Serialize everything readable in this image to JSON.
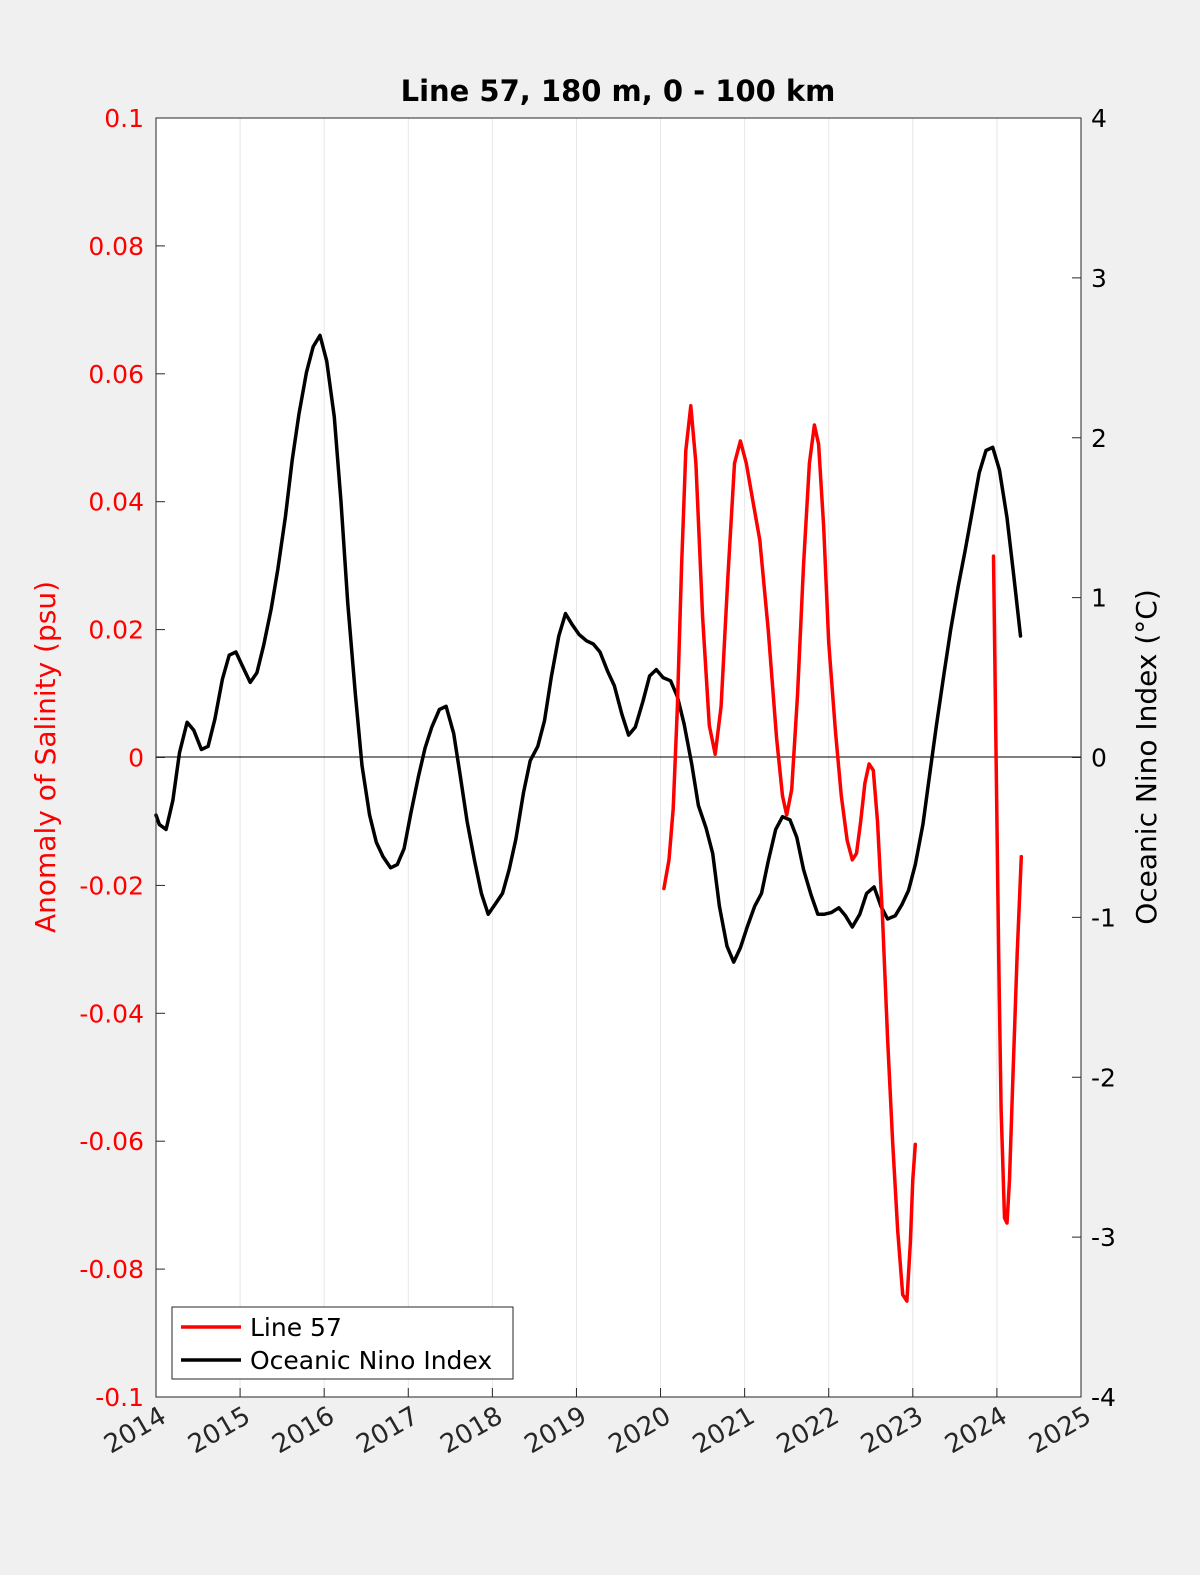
{
  "chart_data": {
    "type": "line",
    "title": "Line 57, 180 m, 0 - 100 km",
    "xlim": [
      2014,
      2025
    ],
    "x_ticks": [
      "2014",
      "2015",
      "2016",
      "2017",
      "2018",
      "2019",
      "2020",
      "2021",
      "2022",
      "2023",
      "2024",
      "2025"
    ],
    "y_left": {
      "label": "Anomaly of Salinity (psu)",
      "lim": [
        -0.1,
        0.1
      ],
      "ticks": [
        "0.1",
        "0.08",
        "0.06",
        "0.04",
        "0.02",
        "0",
        "-0.02",
        "-0.04",
        "-0.06",
        "-0.08",
        "-0.1"
      ],
      "color": "#ff0000"
    },
    "y_right": {
      "label": "Oceanic Nino Index (°C)",
      "lim": [
        -4,
        4
      ],
      "ticks": [
        "4",
        "3",
        "2",
        "1",
        "0",
        "-1",
        "-2",
        "-3",
        "-4"
      ],
      "color": "#000000"
    },
    "grid": "vertical",
    "legend_position": "bottom-left",
    "series": [
      {
        "name": "Line 57",
        "axis": "left",
        "color": "#ff0000",
        "segments": [
          [
            [
              2020.04,
              -0.0205
            ],
            [
              2020.1,
              -0.016
            ],
            [
              2020.15,
              -0.008
            ],
            [
              2020.2,
              0.008
            ],
            [
              2020.25,
              0.03
            ],
            [
              2020.3,
              0.048
            ],
            [
              2020.36,
              0.055
            ],
            [
              2020.42,
              0.046
            ],
            [
              2020.5,
              0.022
            ],
            [
              2020.58,
              0.005
            ],
            [
              2020.65,
              0.0005
            ],
            [
              2020.72,
              0.008
            ],
            [
              2020.8,
              0.028
            ],
            [
              2020.88,
              0.046
            ],
            [
              2020.95,
              0.0495
            ],
            [
              2021.02,
              0.046
            ],
            [
              2021.1,
              0.04
            ],
            [
              2021.18,
              0.034
            ],
            [
              2021.28,
              0.02
            ],
            [
              2021.38,
              0.003
            ],
            [
              2021.45,
              -0.006
            ],
            [
              2021.5,
              -0.009
            ],
            [
              2021.56,
              -0.005
            ],
            [
              2021.63,
              0.01
            ],
            [
              2021.7,
              0.03
            ],
            [
              2021.77,
              0.046
            ],
            [
              2021.83,
              0.052
            ],
            [
              2021.88,
              0.049
            ],
            [
              2021.94,
              0.036
            ],
            [
              2022.0,
              0.018
            ],
            [
              2022.08,
              0.004
            ],
            [
              2022.15,
              -0.006
            ],
            [
              2022.22,
              -0.013
            ],
            [
              2022.28,
              -0.016
            ],
            [
              2022.33,
              -0.015
            ],
            [
              2022.38,
              -0.01
            ],
            [
              2022.43,
              -0.004
            ],
            [
              2022.48,
              -0.001
            ],
            [
              2022.53,
              -0.002
            ],
            [
              2022.58,
              -0.01
            ],
            [
              2022.64,
              -0.025
            ],
            [
              2022.7,
              -0.044
            ],
            [
              2022.76,
              -0.06
            ],
            [
              2022.82,
              -0.074
            ],
            [
              2022.88,
              -0.084
            ],
            [
              2022.93,
              -0.085
            ],
            [
              2022.97,
              -0.076
            ],
            [
              2023.0,
              -0.066
            ],
            [
              2023.03,
              -0.0605
            ]
          ],
          [
            [
              2023.96,
              0.0315
            ],
            [
              2023.99,
              0.0
            ],
            [
              2024.02,
              -0.03
            ],
            [
              2024.05,
              -0.055
            ],
            [
              2024.09,
              -0.072
            ],
            [
              2024.12,
              -0.0728
            ],
            [
              2024.15,
              -0.066
            ],
            [
              2024.19,
              -0.05
            ],
            [
              2024.24,
              -0.031
            ],
            [
              2024.29,
              -0.0155
            ]
          ]
        ]
      },
      {
        "name": "Oceanic Nino Index",
        "axis": "right",
        "color": "#000000",
        "segments": [
          [
            [
              2014.0,
              -0.36
            ],
            [
              2014.04,
              -0.42
            ],
            [
              2014.12,
              -0.45
            ],
            [
              2014.2,
              -0.27
            ],
            [
              2014.28,
              0.03
            ],
            [
              2014.37,
              0.22
            ],
            [
              2014.45,
              0.17
            ],
            [
              2014.54,
              0.05
            ],
            [
              2014.62,
              0.07
            ],
            [
              2014.7,
              0.24
            ],
            [
              2014.79,
              0.49
            ],
            [
              2014.87,
              0.64
            ],
            [
              2014.95,
              0.66
            ],
            [
              2015.03,
              0.57
            ],
            [
              2015.12,
              0.47
            ],
            [
              2015.2,
              0.53
            ],
            [
              2015.28,
              0.7
            ],
            [
              2015.37,
              0.93
            ],
            [
              2015.45,
              1.18
            ],
            [
              2015.54,
              1.51
            ],
            [
              2015.62,
              1.86
            ],
            [
              2015.7,
              2.15
            ],
            [
              2015.79,
              2.41
            ],
            [
              2015.87,
              2.57
            ],
            [
              2015.95,
              2.64
            ],
            [
              2016.03,
              2.48
            ],
            [
              2016.12,
              2.13
            ],
            [
              2016.2,
              1.6
            ],
            [
              2016.28,
              0.97
            ],
            [
              2016.37,
              0.4
            ],
            [
              2016.45,
              -0.05
            ],
            [
              2016.54,
              -0.36
            ],
            [
              2016.62,
              -0.53
            ],
            [
              2016.7,
              -0.62
            ],
            [
              2016.79,
              -0.69
            ],
            [
              2016.87,
              -0.67
            ],
            [
              2016.95,
              -0.57
            ],
            [
              2017.03,
              -0.35
            ],
            [
              2017.12,
              -0.12
            ],
            [
              2017.2,
              0.06
            ],
            [
              2017.28,
              0.19
            ],
            [
              2017.37,
              0.3
            ],
            [
              2017.45,
              0.32
            ],
            [
              2017.54,
              0.15
            ],
            [
              2017.62,
              -0.12
            ],
            [
              2017.7,
              -0.4
            ],
            [
              2017.79,
              -0.65
            ],
            [
              2017.87,
              -0.85
            ],
            [
              2017.95,
              -0.98
            ],
            [
              2018.03,
              -0.92
            ],
            [
              2018.12,
              -0.85
            ],
            [
              2018.2,
              -0.7
            ],
            [
              2018.28,
              -0.51
            ],
            [
              2018.37,
              -0.22
            ],
            [
              2018.45,
              -0.02
            ],
            [
              2018.54,
              0.07
            ],
            [
              2018.62,
              0.23
            ],
            [
              2018.7,
              0.5
            ],
            [
              2018.79,
              0.76
            ],
            [
              2018.87,
              0.9
            ],
            [
              2018.95,
              0.83
            ],
            [
              2019.03,
              0.77
            ],
            [
              2019.12,
              0.73
            ],
            [
              2019.2,
              0.71
            ],
            [
              2019.28,
              0.66
            ],
            [
              2019.37,
              0.54
            ],
            [
              2019.45,
              0.45
            ],
            [
              2019.54,
              0.27
            ],
            [
              2019.62,
              0.14
            ],
            [
              2019.7,
              0.19
            ],
            [
              2019.79,
              0.35
            ],
            [
              2019.87,
              0.51
            ],
            [
              2019.95,
              0.55
            ],
            [
              2020.03,
              0.5
            ],
            [
              2020.12,
              0.48
            ],
            [
              2020.2,
              0.38
            ],
            [
              2020.28,
              0.21
            ],
            [
              2020.37,
              -0.04
            ],
            [
              2020.45,
              -0.3
            ],
            [
              2020.54,
              -0.44
            ],
            [
              2020.62,
              -0.6
            ],
            [
              2020.7,
              -0.93
            ],
            [
              2020.79,
              -1.18
            ],
            [
              2020.87,
              -1.28
            ],
            [
              2020.95,
              -1.19
            ],
            [
              2021.03,
              -1.06
            ],
            [
              2021.12,
              -0.93
            ],
            [
              2021.2,
              -0.85
            ],
            [
              2021.28,
              -0.65
            ],
            [
              2021.37,
              -0.45
            ],
            [
              2021.45,
              -0.37
            ],
            [
              2021.54,
              -0.39
            ],
            [
              2021.62,
              -0.5
            ],
            [
              2021.7,
              -0.7
            ],
            [
              2021.79,
              -0.86
            ],
            [
              2021.87,
              -0.98
            ],
            [
              2021.95,
              -0.98
            ],
            [
              2022.03,
              -0.97
            ],
            [
              2022.12,
              -0.94
            ],
            [
              2022.2,
              -0.99
            ],
            [
              2022.28,
              -1.06
            ],
            [
              2022.37,
              -0.98
            ],
            [
              2022.45,
              -0.85
            ],
            [
              2022.54,
              -0.81
            ],
            [
              2022.62,
              -0.93
            ],
            [
              2022.7,
              -1.01
            ],
            [
              2022.79,
              -0.99
            ],
            [
              2022.87,
              -0.92
            ],
            [
              2022.95,
              -0.83
            ],
            [
              2023.03,
              -0.67
            ],
            [
              2023.12,
              -0.42
            ],
            [
              2023.2,
              -0.11
            ],
            [
              2023.28,
              0.2
            ],
            [
              2023.37,
              0.52
            ],
            [
              2023.45,
              0.8
            ],
            [
              2023.54,
              1.07
            ],
            [
              2023.62,
              1.29
            ],
            [
              2023.7,
              1.52
            ],
            [
              2023.79,
              1.78
            ],
            [
              2023.87,
              1.92
            ],
            [
              2023.95,
              1.94
            ],
            [
              2024.03,
              1.8
            ],
            [
              2024.12,
              1.5
            ],
            [
              2024.2,
              1.14
            ],
            [
              2024.28,
              0.76
            ]
          ]
        ]
      }
    ]
  }
}
